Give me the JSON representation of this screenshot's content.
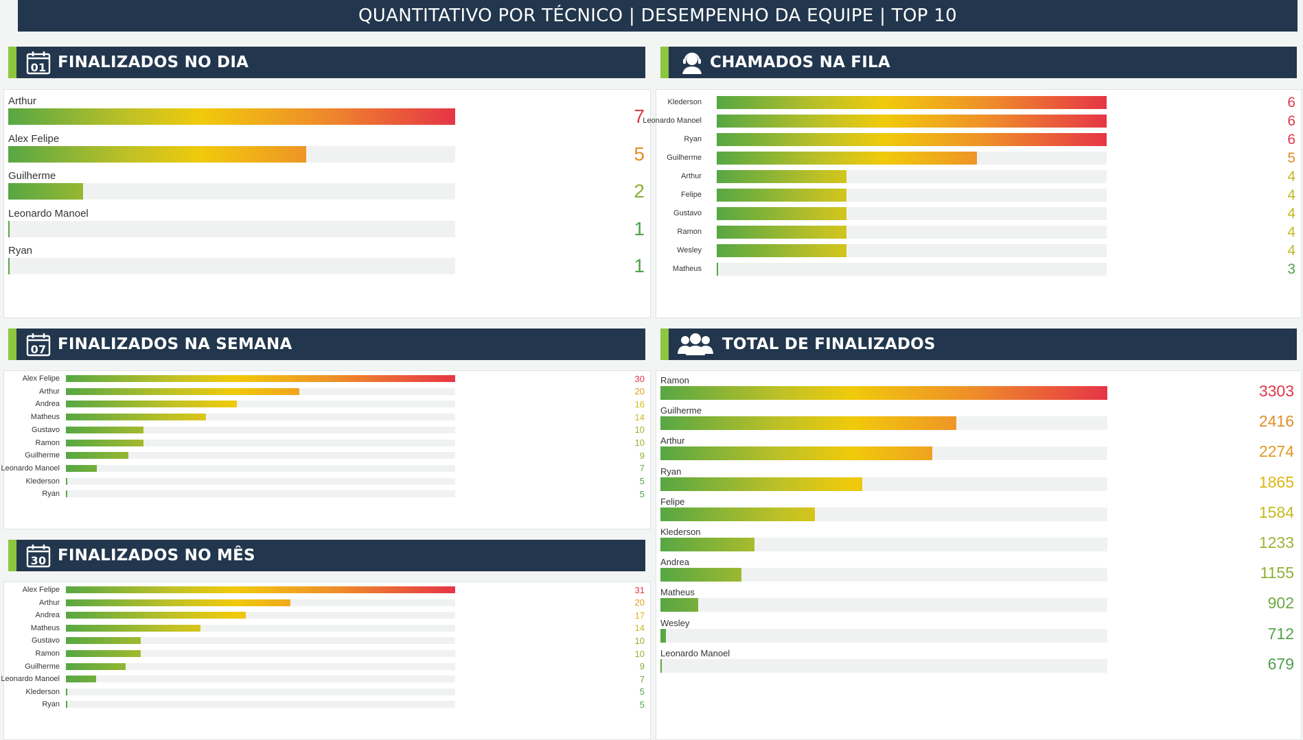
{
  "title": "QUANTITATIVO POR TÉCNICO | DESEMPENHO DA EQUIPE | TOP 10",
  "colors": {
    "header_bg": "#22374d",
    "accent": "#8dc63f",
    "gradient": [
      "#57a744",
      "#bfc126",
      "#f0ca0b",
      "#ef8f29",
      "#e63546"
    ]
  },
  "sections": {
    "dia": {
      "title": "FINALIZADOS NO DIA",
      "icon": "calendar-01-icon",
      "icon_text": "01"
    },
    "fila": {
      "title": "CHAMADOS NA FILA",
      "icon": "support-agent-icon"
    },
    "semana": {
      "title": "FINALIZADOS NA SEMANA",
      "icon": "calendar-07-icon",
      "icon_text": "07"
    },
    "total": {
      "title": "TOTAL DE FINALIZADOS",
      "icon": "team-users-icon"
    },
    "mes": {
      "title": "FINALIZADOS NO MÊS",
      "icon": "calendar-30-icon",
      "icon_text": "30"
    }
  },
  "chart_data": [
    {
      "id": "dia",
      "type": "bar",
      "orientation": "horizontal",
      "title": "FINALIZADOS NO DIA",
      "categories": [
        "Arthur",
        "Alex Felipe",
        "Guilherme",
        "Leonardo Manoel",
        "Ryan"
      ],
      "values": [
        7,
        5,
        2,
        1,
        1
      ],
      "xlim": [
        1,
        7
      ]
    },
    {
      "id": "fila",
      "type": "bar",
      "orientation": "horizontal",
      "title": "CHAMADOS NA FILA",
      "categories": [
        "Klederson",
        "Leonardo Manoel",
        "Ryan",
        "Guilherme",
        "Arthur",
        "Felipe",
        "Gustavo",
        "Ramon",
        "Wesley",
        "Matheus"
      ],
      "values": [
        6,
        6,
        6,
        5,
        4,
        4,
        4,
        4,
        4,
        3
      ],
      "xlim": [
        3,
        6
      ]
    },
    {
      "id": "semana",
      "type": "bar",
      "orientation": "horizontal",
      "title": "FINALIZADOS NA SEMANA",
      "categories": [
        "Alex Felipe",
        "Arthur",
        "Andrea",
        "Matheus",
        "Gustavo",
        "Ramon",
        "Guilherme",
        "Leonardo Manoel",
        "Klederson",
        "Ryan"
      ],
      "values": [
        30,
        20,
        16,
        14,
        10,
        10,
        9,
        7,
        5,
        5
      ],
      "xlim": [
        5,
        30
      ]
    },
    {
      "id": "total",
      "type": "bar",
      "orientation": "horizontal",
      "title": "TOTAL DE FINALIZADOS",
      "categories": [
        "Ramon",
        "Guilherme",
        "Arthur",
        "Ryan",
        "Felipe",
        "Klederson",
        "Andrea",
        "Matheus",
        "Wesley",
        "Leonardo Manoel"
      ],
      "values": [
        3303,
        2416,
        2274,
        1865,
        1584,
        1233,
        1155,
        902,
        712,
        679
      ],
      "xlim": [
        679,
        3303
      ]
    },
    {
      "id": "mes",
      "type": "bar",
      "orientation": "horizontal",
      "title": "FINALIZADOS NO MÊS",
      "categories": [
        "Alex Felipe",
        "Arthur",
        "Andrea",
        "Matheus",
        "Gustavo",
        "Ramon",
        "Guilherme",
        "Leonardo Manoel",
        "Klederson",
        "Ryan"
      ],
      "values": [
        31,
        20,
        17,
        14,
        10,
        10,
        9,
        7,
        5,
        5
      ],
      "xlim": [
        5,
        31
      ]
    }
  ]
}
